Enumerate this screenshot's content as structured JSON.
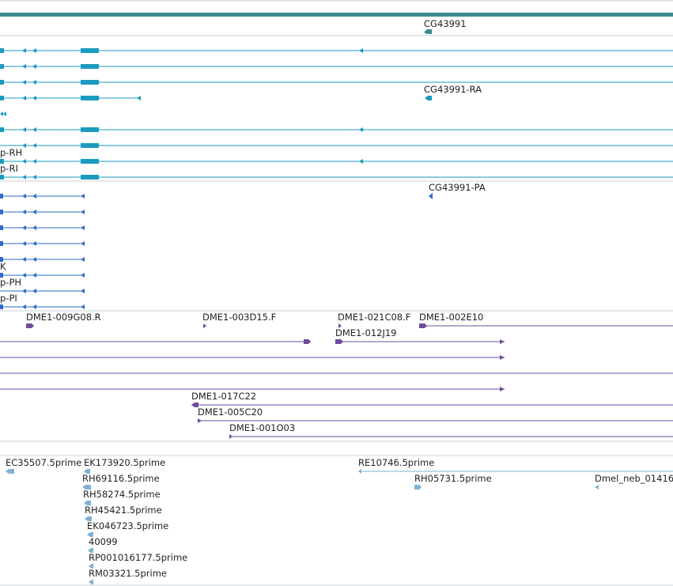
{
  "colors": {
    "gene_bar": "#3a8c8c",
    "transcript": "#1a9bbf",
    "protein": "#2e6bc4",
    "clone": "#6e4c9c",
    "est": "#7db2d6",
    "separator": "#c8d0d8"
  },
  "genes": {
    "gene_label": "CG43991",
    "transcript_label": "CG43991-RA",
    "transcript_rh": "p-RH",
    "transcript_ri": "p-RI"
  },
  "proteins": {
    "protein_label": "CG43991-PA",
    "partial_k": "K",
    "protein_ph": "p-PH",
    "protein_pi": "p-PI"
  },
  "clones": {
    "c1": "DME1-009G08.R",
    "c2": "DME1-003D15.F",
    "c3": "DME1-021C08.F",
    "c4": "DME1-002E10",
    "c5": "DME1-012J19",
    "c6": "DME1-017C22",
    "c7": "DME1-005C20",
    "c8": "DME1-001O03"
  },
  "ests": {
    "e1": "EC35507.5prime",
    "e2": "EK173920.5prime",
    "e3": "RE10746.5prime",
    "e4": "RH69116.5prime",
    "e5": "RH05731.5prime",
    "e6": "Dmel_neb_01416",
    "e7": "RH58274.5prime",
    "e8": "RH45421.5prime",
    "e9": "EK046723.5prime",
    "e10": "40099",
    "e11": "RP001016177.5prime",
    "e12": "RM03321.5prime"
  }
}
